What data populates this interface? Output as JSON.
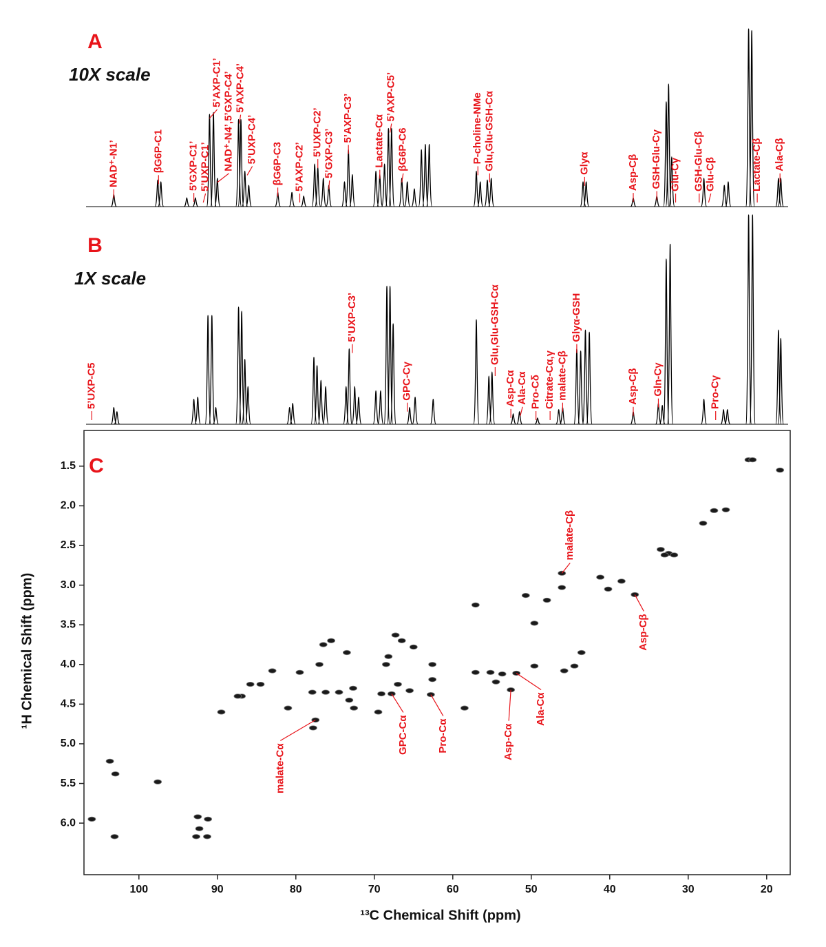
{
  "chart_data": [
    {
      "type": "spectrum",
      "panel_label": "A",
      "scale_label": "10X scale",
      "color": "#000000",
      "xlim": [
        107,
        17
      ],
      "ylim": [
        0,
        100
      ],
      "x": [
        103.2,
        97.6,
        97.2,
        93.9,
        92.8,
        91.0,
        90.5,
        90.0,
        87.3,
        87.0,
        86.5,
        86.0,
        82.3,
        80.5,
        79.0,
        77.6,
        77.2,
        76.5,
        75.8,
        73.8,
        73.3,
        72.8,
        69.8,
        69.3,
        68.7,
        68.2,
        67.8,
        66.5,
        65.8,
        64.9,
        64.0,
        63.5,
        63.0,
        57.0,
        56.5,
        55.6,
        55.1,
        43.4,
        43.0,
        37.0,
        34.0,
        32.8,
        32.5,
        32.1,
        28.0,
        25.4,
        24.9,
        22.3,
        21.9,
        18.5,
        18.2
      ],
      "values": [
        7,
        15,
        14,
        5,
        5,
        52,
        53,
        16,
        49,
        49,
        20,
        12,
        8,
        8,
        6,
        24,
        22,
        16,
        12,
        14,
        32,
        18,
        20,
        18,
        24,
        44,
        44,
        16,
        14,
        10,
        32,
        35,
        35,
        20,
        14,
        15,
        16,
        14,
        14,
        5,
        6,
        59,
        69,
        28,
        16,
        12,
        14,
        100,
        99,
        16,
        16
      ],
      "annotations": [
        {
          "text": "NAD⁺-N1’",
          "x": 103.2
        },
        {
          "text": "βG6P-C1",
          "x": 97.5
        },
        {
          "text": "5’GXP-C1’",
          "x": 93.0
        },
        {
          "text": "5’UXP-C1’",
          "x": 91.8
        },
        {
          "text": "5’AXP-C1’",
          "x": 91.0
        },
        {
          "text": "NAD⁺-N4’,5’GXP-C4’",
          "x": 90.0
        },
        {
          "text": "5’AXP-C4’",
          "x": 87.2
        },
        {
          "text": "5’UXP-C4’",
          "x": 86.2
        },
        {
          "text": "βG6P-C3",
          "x": 82.3
        },
        {
          "text": "5’AXP-C2’",
          "x": 79.5
        },
        {
          "text": "5’UXP-C2’",
          "x": 77.2
        },
        {
          "text": "5’GXP-C3’",
          "x": 75.8
        },
        {
          "text": "5’AXP-C3’",
          "x": 73.3
        },
        {
          "text": "Lactate-Cα",
          "x": 69.3
        },
        {
          "text": "5’AXP-C5’",
          "x": 68.0
        },
        {
          "text": "βG6P-C6",
          "x": 66.5
        },
        {
          "text": "P-choline-NMe",
          "x": 56.8
        },
        {
          "text": "Glu,Glu-GSH-Cα",
          "x": 55.3
        },
        {
          "text": "Glyα",
          "x": 43.2
        },
        {
          "text": "Asp-Cβ",
          "x": 37.0
        },
        {
          "text": "GSH-Glu-Cγ",
          "x": 34.0
        },
        {
          "text": "Glu-Cγ",
          "x": 31.6
        },
        {
          "text": "GSH-Glu-Cβ",
          "x": 28.6
        },
        {
          "text": "Glu-Cβ",
          "x": 27.4
        },
        {
          "text": "Lactate-Cβ",
          "x": 21.2
        },
        {
          "text": "Ala-Cβ",
          "x": 18.3
        }
      ]
    },
    {
      "type": "spectrum",
      "panel_label": "B",
      "scale_label": "1X scale",
      "color": "#000000",
      "xlim": [
        107,
        17
      ],
      "ylim": [
        0,
        100
      ],
      "x": [
        103.2,
        102.8,
        93.0,
        92.5,
        91.2,
        90.7,
        90.2,
        87.3,
        86.9,
        86.5,
        86.1,
        80.8,
        80.4,
        77.7,
        77.3,
        76.8,
        76.2,
        73.6,
        73.2,
        72.5,
        72.0,
        69.8,
        69.2,
        68.4,
        68.0,
        67.6,
        65.5,
        64.8,
        62.5,
        57.0,
        55.4,
        55.0,
        52.3,
        51.5,
        49.2,
        46.5,
        46.0,
        44.2,
        43.7,
        43.1,
        42.6,
        37.0,
        33.8,
        33.3,
        32.8,
        32.3,
        28.0,
        25.5,
        25.0,
        22.3,
        21.8,
        18.5,
        18.2
      ],
      "values": [
        8,
        6,
        12,
        13,
        52,
        52,
        8,
        56,
        54,
        31,
        18,
        8,
        10,
        32,
        28,
        21,
        18,
        18,
        36,
        18,
        13,
        16,
        16,
        66,
        66,
        48,
        8,
        13,
        12,
        50,
        23,
        25,
        5,
        6,
        3,
        7,
        8,
        36,
        35,
        45,
        44,
        6,
        10,
        9,
        79,
        86,
        12,
        7,
        7,
        100,
        100,
        45,
        41
      ],
      "annotations": [
        {
          "text": "5’UXP-C5",
          "x": 106.0
        },
        {
          "text": "5’UXP-C3’",
          "x": 72.8
        },
        {
          "text": "GPC-Cγ",
          "x": 65.8
        },
        {
          "text": "Glu,Glu-GSH-Cα",
          "x": 54.6
        },
        {
          "text": "Asp-Cα",
          "x": 52.6
        },
        {
          "text": "Ala-Cα",
          "x": 51.4
        },
        {
          "text": "Pro-Cδ",
          "x": 49.4
        },
        {
          "text": "Citrate-Cα,γ",
          "x": 47.6
        },
        {
          "text": "malate-Cβ",
          "x": 46.0
        },
        {
          "text": "Glyα-GSH",
          "x": 44.2
        },
        {
          "text": "Asp-Cβ",
          "x": 37.0
        },
        {
          "text": "Gln-Cγ",
          "x": 33.8
        },
        {
          "text": "Pro-Cγ",
          "x": 26.5
        }
      ]
    },
    {
      "type": "scatter",
      "panel_label": "C",
      "color": "#1a1a1a",
      "xlabel": "¹³C Chemical Shift (ppm)",
      "ylabel": "¹H Chemical Shift (ppm)",
      "xlim": [
        107,
        17
      ],
      "ylim": [
        1.05,
        6.65
      ],
      "xticks": [
        100,
        90,
        80,
        70,
        60,
        50,
        40,
        30,
        20
      ],
      "yticks": [
        1.5,
        {
          "value": 2,
          "label": "2.0"
        },
        2.5,
        {
          "value": 3,
          "label": "3.0"
        },
        3.5,
        {
          "value": 4,
          "label": "4.0"
        },
        4.5,
        {
          "value": 5,
          "label": "5.0"
        },
        5.5,
        {
          "value": 6,
          "label": "6.0"
        }
      ],
      "x": [
        22.3,
        21.8,
        18.3,
        25.2,
        26.7,
        28.1,
        32.5,
        31.8,
        33.5,
        33.0,
        46.1,
        46.1,
        41.2,
        38.5,
        36.8,
        40.2,
        57.1,
        50.7,
        49.6,
        48.0,
        43.6,
        44.5,
        45.8,
        49.6,
        55.2,
        53.7,
        52.6,
        51.9,
        57.1,
        54.5,
        62.6,
        62.6,
        62.8,
        58.5,
        65.0,
        66.5,
        67.3,
        68.2,
        68.5,
        67.0,
        67.8,
        69.1,
        69.5,
        65.5,
        72.7,
        72.6,
        73.2,
        74.5,
        73.5,
        75.5,
        76.5,
        77.0,
        77.9,
        76.2,
        77.5,
        77.8,
        81.0,
        84.5,
        86.9,
        87.4,
        85.8,
        89.5,
        91.2,
        92.5,
        92.3,
        91.3,
        92.7,
        97.6,
        103.0,
        103.7,
        103.1,
        106.0,
        83.0,
        79.5
      ],
      "y": [
        1.42,
        1.42,
        1.55,
        2.05,
        2.06,
        2.22,
        2.6,
        2.62,
        2.55,
        2.62,
        2.85,
        3.03,
        2.9,
        2.95,
        3.12,
        3.05,
        3.25,
        3.13,
        3.48,
        3.19,
        3.85,
        4.02,
        4.08,
        4.02,
        4.1,
        4.12,
        4.32,
        4.11,
        4.1,
        4.22,
        4.0,
        4.19,
        4.38,
        4.55,
        3.78,
        3.7,
        3.63,
        3.9,
        4.0,
        4.25,
        4.37,
        4.37,
        4.6,
        4.33,
        4.3,
        4.55,
        4.45,
        4.35,
        3.85,
        3.7,
        3.75,
        4.0,
        4.35,
        4.35,
        4.7,
        4.8,
        4.55,
        4.25,
        4.4,
        4.4,
        4.25,
        4.6,
        5.95,
        5.92,
        6.07,
        6.17,
        6.17,
        5.48,
        5.38,
        5.22,
        6.17,
        5.95,
        4.08,
        4.1
      ],
      "annotations": [
        {
          "text": "malate-Cβ",
          "x": 46.1,
          "y": 2.85
        },
        {
          "text": "Asp-Cβ",
          "x": 36.8,
          "y": 3.12
        },
        {
          "text": "malate-Cα",
          "x": 77.5,
          "y": 4.7
        },
        {
          "text": "GPC-Cα",
          "x": 67.8,
          "y": 4.37
        },
        {
          "text": "Pro-Cα",
          "x": 62.8,
          "y": 4.38
        },
        {
          "text": "Asp-Cα",
          "x": 52.6,
          "y": 4.32
        },
        {
          "text": "Ala-Cα",
          "x": 51.9,
          "y": 4.11
        }
      ]
    }
  ]
}
